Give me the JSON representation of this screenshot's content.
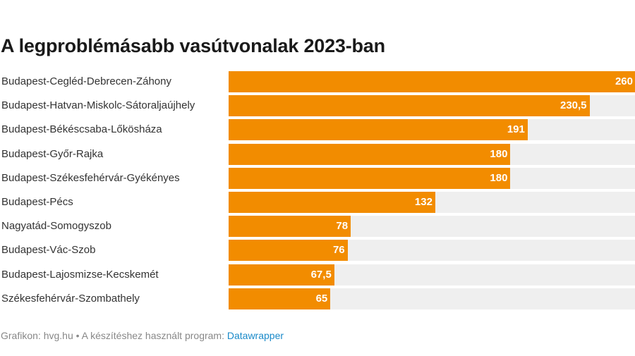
{
  "chart_data": {
    "type": "bar",
    "orientation": "horizontal",
    "title": "A legproblémásabb vasútvonalak 2023-ban",
    "categories": [
      "Budapest-Cegléd-Debrecen-Záhony",
      "Budapest-Hatvan-Miskolc-Sátoraljaújhely",
      "Budapest-Békéscsaba-Lőkösháza",
      "Budapest-Győr-Rajka",
      "Budapest-Székesfehérvár-Gyékényes",
      "Budapest-Pécs",
      "Nagyatád-Somogyszob",
      "Budapest-Vác-Szob",
      "Budapest-Lajosmizse-Kecskemét",
      "Székesfehérvár-Szombathely"
    ],
    "values": [
      260,
      230.5,
      191,
      180,
      180,
      132,
      78,
      76,
      67.5,
      65
    ],
    "value_labels": [
      "260",
      "230,5",
      "191",
      "180",
      "180",
      "132",
      "78",
      "76",
      "67,5",
      "65"
    ],
    "xlim": [
      0,
      260
    ],
    "bar_color": "#f28c00",
    "track_color": "#efefef",
    "grid": false
  },
  "footer": {
    "source": "Grafikon: hvg.hu",
    "separator": " • ",
    "tool_text": "A készítéshez használt program: ",
    "tool_link": "Datawrapper",
    "link_color": "#1a8ac9"
  }
}
